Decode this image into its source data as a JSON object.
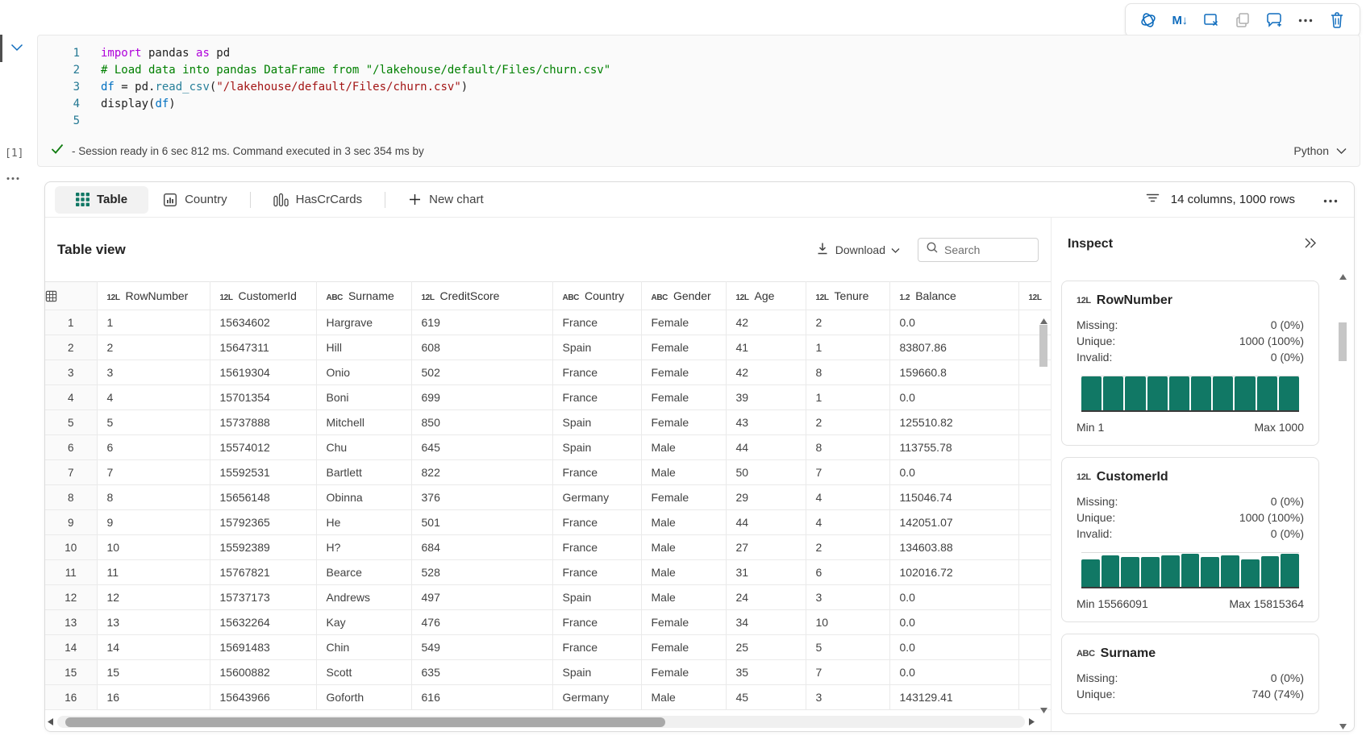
{
  "colors": {
    "accent_blue": "#0F6CBD",
    "teal": "#117865",
    "status_green": "#107C10"
  },
  "cell_toolbar": {
    "buttons": [
      {
        "icon": "copilot-icon",
        "disabled": false
      },
      {
        "icon": "markdown-convert-icon",
        "disabled": false
      },
      {
        "icon": "clear-outputs-icon",
        "disabled": false
      },
      {
        "icon": "copy-cell-icon",
        "disabled": true
      },
      {
        "icon": "add-comment-icon",
        "disabled": false
      },
      {
        "icon": "more-options-icon",
        "disabled": false
      },
      {
        "icon": "delete-cell-icon",
        "disabled": false
      }
    ]
  },
  "cell": {
    "execution_count": "[1]",
    "lines": [
      {
        "num": "1",
        "tokens": [
          {
            "c": "k",
            "t": "import"
          },
          {
            "c": "p",
            "t": " pandas "
          },
          {
            "c": "k",
            "t": "as"
          },
          {
            "c": "p",
            "t": " pd"
          }
        ]
      },
      {
        "num": "2",
        "tokens": [
          {
            "c": "c",
            "t": "# Load data into pandas DataFrame from \"/lakehouse/default/Files/churn.csv\""
          }
        ]
      },
      {
        "num": "3",
        "tokens": [
          {
            "c": "v",
            "t": "df"
          },
          {
            "c": "p",
            "t": " = pd."
          },
          {
            "c": "f",
            "t": "read_csv"
          },
          {
            "c": "p",
            "t": "("
          },
          {
            "c": "s",
            "t": "\"/lakehouse/default/Files/churn.csv\""
          },
          {
            "c": "p",
            "t": ")"
          }
        ]
      },
      {
        "num": "4",
        "tokens": [
          {
            "c": "p",
            "t": "display("
          },
          {
            "c": "v",
            "t": "df"
          },
          {
            "c": "p",
            "t": ")"
          }
        ]
      },
      {
        "num": "5",
        "tokens": []
      }
    ],
    "status_message": "- Session ready in 6 sec 812 ms. Command executed in 3 sec 354 ms by",
    "language": "Python"
  },
  "results": {
    "tabs": [
      {
        "label": "Table",
        "icon": "table-grid-icon",
        "active": true
      },
      {
        "label": "Country",
        "icon": "chart-frame-icon",
        "active": false
      },
      {
        "label": "HasCrCards",
        "icon": "column-chart-icon",
        "active": false
      },
      {
        "label": "New chart",
        "icon": "plus-icon",
        "active": false
      }
    ],
    "summary": "14 columns, 1000 rows",
    "table_view": {
      "title": "Table view",
      "download_label": "Download",
      "search_placeholder": "Search",
      "columns": [
        {
          "glyph": "12L",
          "label": "RowNumber"
        },
        {
          "glyph": "12L",
          "label": "CustomerId"
        },
        {
          "glyph": "ABC",
          "label": "Surname"
        },
        {
          "glyph": "12L",
          "label": "CreditScore"
        },
        {
          "glyph": "ABC",
          "label": "Country"
        },
        {
          "glyph": "ABC",
          "label": "Gender"
        },
        {
          "glyph": "12L",
          "label": "Age"
        },
        {
          "glyph": "12L",
          "label": "Tenure"
        },
        {
          "glyph": "1.2",
          "label": "Balance"
        },
        {
          "glyph": "12L",
          "label": ""
        }
      ],
      "rows": [
        [
          "1",
          "1",
          "15634602",
          "Hargrave",
          "619",
          "France",
          "Female",
          "42",
          "2",
          "0.0"
        ],
        [
          "2",
          "2",
          "15647311",
          "Hill",
          "608",
          "Spain",
          "Female",
          "41",
          "1",
          "83807.86"
        ],
        [
          "3",
          "3",
          "15619304",
          "Onio",
          "502",
          "France",
          "Female",
          "42",
          "8",
          "159660.8"
        ],
        [
          "4",
          "4",
          "15701354",
          "Boni",
          "699",
          "France",
          "Female",
          "39",
          "1",
          "0.0"
        ],
        [
          "5",
          "5",
          "15737888",
          "Mitchell",
          "850",
          "Spain",
          "Female",
          "43",
          "2",
          "125510.82"
        ],
        [
          "6",
          "6",
          "15574012",
          "Chu",
          "645",
          "Spain",
          "Male",
          "44",
          "8",
          "113755.78"
        ],
        [
          "7",
          "7",
          "15592531",
          "Bartlett",
          "822",
          "France",
          "Male",
          "50",
          "7",
          "0.0"
        ],
        [
          "8",
          "8",
          "15656148",
          "Obinna",
          "376",
          "Germany",
          "Female",
          "29",
          "4",
          "115046.74"
        ],
        [
          "9",
          "9",
          "15792365",
          "He",
          "501",
          "France",
          "Male",
          "44",
          "4",
          "142051.07"
        ],
        [
          "10",
          "10",
          "15592389",
          "H?",
          "684",
          "France",
          "Male",
          "27",
          "2",
          "134603.88"
        ],
        [
          "11",
          "11",
          "15767821",
          "Bearce",
          "528",
          "France",
          "Male",
          "31",
          "6",
          "102016.72"
        ],
        [
          "12",
          "12",
          "15737173",
          "Andrews",
          "497",
          "Spain",
          "Male",
          "24",
          "3",
          "0.0"
        ],
        [
          "13",
          "13",
          "15632264",
          "Kay",
          "476",
          "France",
          "Female",
          "34",
          "10",
          "0.0"
        ],
        [
          "14",
          "14",
          "15691483",
          "Chin",
          "549",
          "France",
          "Female",
          "25",
          "5",
          "0.0"
        ],
        [
          "15",
          "15",
          "15600882",
          "Scott",
          "635",
          "Spain",
          "Female",
          "35",
          "7",
          "0.0"
        ],
        [
          "16",
          "16",
          "15643966",
          "Goforth",
          "616",
          "Germany",
          "Male",
          "45",
          "3",
          "143129.41"
        ]
      ]
    },
    "inspect": {
      "title": "Inspect",
      "cards": [
        {
          "glyph": "12L",
          "name": "RowNumber",
          "stats": [
            [
              "Missing:",
              "0 (0%)"
            ],
            [
              "Unique:",
              "1000 (100%)"
            ],
            [
              "Invalid:",
              "0 (0%)"
            ]
          ],
          "hist": [
            1,
            1,
            1,
            1,
            1,
            1,
            1,
            1,
            1,
            1
          ],
          "min_label": "Min 1",
          "max_label": "Max 1000"
        },
        {
          "glyph": "12L",
          "name": "CustomerId",
          "stats": [
            [
              "Missing:",
              "0 (0%)"
            ],
            [
              "Unique:",
              "1000 (100%)"
            ],
            [
              "Invalid:",
              "0 (0%)"
            ]
          ],
          "hist": [
            0.8,
            0.93,
            0.87,
            0.87,
            0.92,
            0.97,
            0.88,
            0.92,
            0.8,
            0.9,
            0.97
          ],
          "min_label": "Min 15566091",
          "max_label": "Max 15815364"
        },
        {
          "glyph": "ABC",
          "name": "Surname",
          "stats": [
            [
              "Missing:",
              "0 (0%)"
            ],
            [
              "Unique:",
              "740 (74%)"
            ]
          ]
        }
      ]
    }
  }
}
